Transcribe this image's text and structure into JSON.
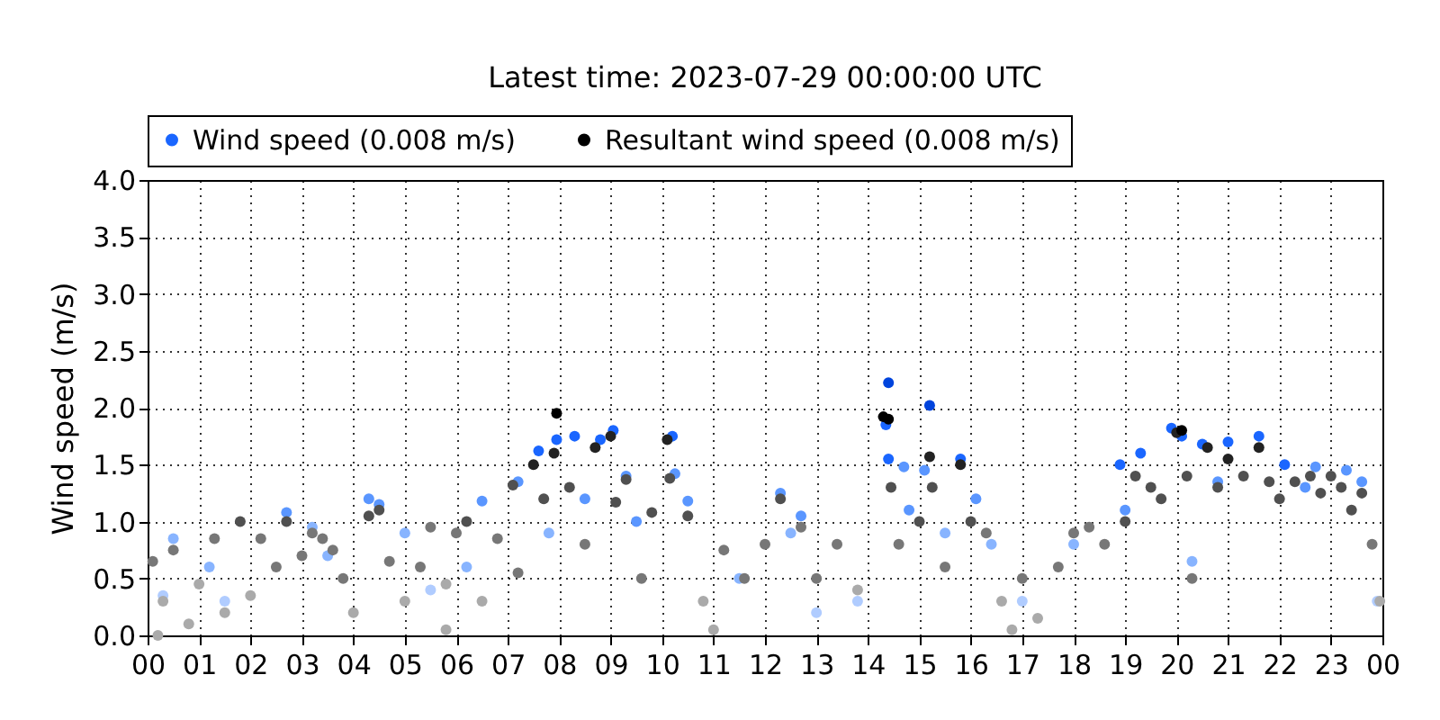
{
  "chart_data": {
    "type": "scatter",
    "title": "Latest time: 2023-07-29 00:00:00 UTC",
    "ylabel": "Wind speed (m/s)",
    "xlim": [
      0,
      24
    ],
    "xticks": [
      {
        "value": 0,
        "label": "00"
      },
      {
        "value": 1,
        "label": "01"
      },
      {
        "value": 2,
        "label": "02"
      },
      {
        "value": 3,
        "label": "03"
      },
      {
        "value": 4,
        "label": "04"
      },
      {
        "value": 5,
        "label": "05"
      },
      {
        "value": 6,
        "label": "06"
      },
      {
        "value": 7,
        "label": "07"
      },
      {
        "value": 8,
        "label": "08"
      },
      {
        "value": 9,
        "label": "09"
      },
      {
        "value": 10,
        "label": "10"
      },
      {
        "value": 11,
        "label": "11"
      },
      {
        "value": 12,
        "label": "12"
      },
      {
        "value": 13,
        "label": "13"
      },
      {
        "value": 14,
        "label": "14"
      },
      {
        "value": 15,
        "label": "15"
      },
      {
        "value": 16,
        "label": "16"
      },
      {
        "value": 17,
        "label": "17"
      },
      {
        "value": 18,
        "label": "18"
      },
      {
        "value": 19,
        "label": "19"
      },
      {
        "value": 20,
        "label": "20"
      },
      {
        "value": 21,
        "label": "21"
      },
      {
        "value": 22,
        "label": "22"
      },
      {
        "value": 23,
        "label": "23"
      },
      {
        "value": 24,
        "label": "00"
      }
    ],
    "ylim": [
      0,
      4
    ],
    "yticks": [
      {
        "value": 0,
        "label": "0.0"
      },
      {
        "value": 0.5,
        "label": "0.5"
      },
      {
        "value": 1,
        "label": "1.0"
      },
      {
        "value": 1.5,
        "label": "1.5"
      },
      {
        "value": 2,
        "label": "2.0"
      },
      {
        "value": 2.5,
        "label": "2.5"
      },
      {
        "value": 3,
        "label": "3.0"
      },
      {
        "value": 3.5,
        "label": "3.5"
      },
      {
        "value": 4,
        "label": "4.0"
      }
    ],
    "grid": true,
    "legend": "top",
    "marker": "circle",
    "series": [
      {
        "name": "Wind speed (0.008 m/s)",
        "color": "#1a66ff",
        "x": [
          0.5,
          1.2,
          2.7,
          3.2,
          4.3,
          4.5,
          5.0,
          6.5,
          7.2,
          7.6,
          7.95,
          8.3,
          8.8,
          9.05,
          9.3,
          10.2,
          10.25,
          10.5,
          12.3,
          12.7,
          13.0,
          14.4,
          14.35,
          14.4,
          14.7,
          15.2,
          15.1,
          15.8,
          16.1,
          16.4,
          18.9,
          19.3,
          19.9,
          20.1,
          20.3,
          20.5,
          21.0,
          21.6,
          22.1,
          22.7,
          23.3,
          23.6,
          0.3,
          1.5,
          3.5,
          5.5,
          6.2,
          7.8,
          8.5,
          9.5,
          11.5,
          12.5,
          13.8,
          14.8,
          15.5,
          17.0,
          18.0,
          19.0,
          20.8,
          22.5,
          23.9
        ],
        "values": [
          0.85,
          0.6,
          1.08,
          0.95,
          1.2,
          1.15,
          0.9,
          1.18,
          1.35,
          1.62,
          1.72,
          1.75,
          1.72,
          1.8,
          1.4,
          1.75,
          1.42,
          1.18,
          1.25,
          1.05,
          0.2,
          2.22,
          1.85,
          1.55,
          1.48,
          2.02,
          1.45,
          1.55,
          1.2,
          0.8,
          1.5,
          1.6,
          1.82,
          1.75,
          0.65,
          1.68,
          1.7,
          1.75,
          1.5,
          1.48,
          1.45,
          1.35,
          0.35,
          0.3,
          0.7,
          0.4,
          0.6,
          0.9,
          1.2,
          1.0,
          0.5,
          0.9,
          0.3,
          1.1,
          0.9,
          0.3,
          0.8,
          1.1,
          1.35,
          1.3,
          0.3
        ],
        "colors": [
          "#88b4ff",
          "#88b4ff",
          "#5a96ff",
          "#88b4ff",
          "#5a96ff",
          "#5a96ff",
          "#88b4ff",
          "#5a96ff",
          "#5a96ff",
          "#1a66ff",
          "#1a66ff",
          "#1a66ff",
          "#1a66ff",
          "#1a66ff",
          "#5a96ff",
          "#1a66ff",
          "#5a96ff",
          "#5a96ff",
          "#5a96ff",
          "#5a96ff",
          "#b0ccff",
          "#0044dd",
          "#1a66ff",
          "#1a66ff",
          "#5a96ff",
          "#0044dd",
          "#5a96ff",
          "#1a66ff",
          "#5a96ff",
          "#88b4ff",
          "#1a66ff",
          "#1a66ff",
          "#1a66ff",
          "#1a66ff",
          "#88b4ff",
          "#1a66ff",
          "#1a66ff",
          "#1a66ff",
          "#1a66ff",
          "#5a96ff",
          "#5a96ff",
          "#5a96ff",
          "#b0ccff",
          "#b0ccff",
          "#88b4ff",
          "#b0ccff",
          "#88b4ff",
          "#88b4ff",
          "#5a96ff",
          "#5a96ff",
          "#88b4ff",
          "#88b4ff",
          "#b0ccff",
          "#5a96ff",
          "#88b4ff",
          "#b0ccff",
          "#88b4ff",
          "#5a96ff",
          "#5a96ff",
          "#5a96ff",
          "#b0ccff"
        ]
      },
      {
        "name": "Resultant wind speed (0.008 m/s)",
        "color": "#000000",
        "x": [
          0.1,
          0.3,
          0.5,
          0.8,
          1.0,
          1.3,
          1.5,
          1.8,
          2.0,
          2.2,
          2.5,
          2.7,
          3.0,
          3.2,
          3.4,
          3.6,
          3.8,
          4.0,
          4.3,
          4.5,
          4.7,
          5.0,
          5.3,
          5.5,
          5.8,
          6.0,
          6.2,
          6.5,
          6.8,
          7.1,
          7.2,
          7.5,
          7.7,
          7.95,
          7.9,
          8.2,
          8.5,
          8.7,
          9.0,
          9.1,
          9.3,
          9.6,
          9.8,
          10.1,
          10.15,
          10.5,
          10.8,
          11.2,
          11.6,
          12.0,
          12.3,
          12.7,
          13.0,
          13.4,
          13.8,
          14.3,
          14.4,
          14.45,
          14.6,
          15.0,
          15.2,
          15.25,
          15.5,
          15.8,
          16.0,
          16.3,
          16.6,
          17.0,
          17.3,
          17.7,
          18.0,
          18.3,
          18.6,
          19.0,
          19.2,
          19.5,
          19.7,
          20.0,
          20.1,
          20.2,
          20.3,
          20.6,
          20.8,
          21.0,
          21.3,
          21.6,
          21.8,
          22.0,
          22.3,
          22.6,
          22.8,
          23.0,
          23.2,
          23.4,
          23.6,
          23.8,
          23.95,
          0.2,
          5.8,
          11.0,
          16.8
        ],
        "values": [
          0.65,
          0.3,
          0.75,
          0.1,
          0.45,
          0.85,
          0.2,
          1.0,
          0.35,
          0.85,
          0.6,
          1.0,
          0.7,
          0.9,
          0.85,
          0.75,
          0.5,
          0.2,
          1.05,
          1.1,
          0.65,
          0.3,
          0.6,
          0.95,
          0.45,
          0.9,
          1.0,
          0.3,
          0.85,
          1.32,
          0.55,
          1.5,
          1.2,
          1.95,
          1.6,
          1.3,
          0.8,
          1.65,
          1.75,
          1.17,
          1.37,
          0.5,
          1.08,
          1.72,
          1.38,
          1.05,
          0.3,
          0.75,
          0.5,
          0.8,
          1.2,
          0.95,
          0.5,
          0.8,
          0.4,
          1.92,
          1.9,
          1.3,
          0.8,
          1.0,
          1.57,
          1.3,
          0.6,
          1.5,
          1.0,
          0.9,
          0.3,
          0.5,
          0.15,
          0.6,
          0.9,
          0.95,
          0.8,
          1.0,
          1.4,
          1.3,
          1.2,
          1.78,
          1.8,
          1.4,
          0.5,
          1.65,
          1.3,
          1.55,
          1.4,
          1.65,
          1.35,
          1.2,
          1.35,
          1.4,
          1.25,
          1.4,
          1.3,
          1.1,
          1.25,
          0.8,
          0.3,
          0.0,
          0.05,
          0.05,
          0.05
        ],
        "colors": [
          "#777777",
          "#aaaaaa",
          "#777777",
          "#aaaaaa",
          "#aaaaaa",
          "#777777",
          "#aaaaaa",
          "#505050",
          "#aaaaaa",
          "#777777",
          "#777777",
          "#505050",
          "#777777",
          "#777777",
          "#777777",
          "#777777",
          "#777777",
          "#aaaaaa",
          "#505050",
          "#505050",
          "#777777",
          "#aaaaaa",
          "#777777",
          "#777777",
          "#aaaaaa",
          "#777777",
          "#505050",
          "#aaaaaa",
          "#777777",
          "#505050",
          "#777777",
          "#222222",
          "#505050",
          "#000000",
          "#222222",
          "#505050",
          "#777777",
          "#222222",
          "#222222",
          "#505050",
          "#505050",
          "#777777",
          "#505050",
          "#222222",
          "#505050",
          "#505050",
          "#aaaaaa",
          "#777777",
          "#777777",
          "#777777",
          "#505050",
          "#777777",
          "#777777",
          "#777777",
          "#aaaaaa",
          "#000000",
          "#000000",
          "#505050",
          "#777777",
          "#505050",
          "#222222",
          "#505050",
          "#777777",
          "#222222",
          "#505050",
          "#777777",
          "#aaaaaa",
          "#777777",
          "#aaaaaa",
          "#777777",
          "#777777",
          "#777777",
          "#777777",
          "#505050",
          "#505050",
          "#505050",
          "#505050",
          "#222222",
          "#000000",
          "#505050",
          "#777777",
          "#222222",
          "#505050",
          "#222222",
          "#505050",
          "#222222",
          "#505050",
          "#505050",
          "#505050",
          "#505050",
          "#505050",
          "#505050",
          "#505050",
          "#505050",
          "#505050",
          "#777777",
          "#aaaaaa",
          "#aaaaaa",
          "#aaaaaa",
          "#aaaaaa",
          "#aaaaaa"
        ]
      }
    ]
  }
}
